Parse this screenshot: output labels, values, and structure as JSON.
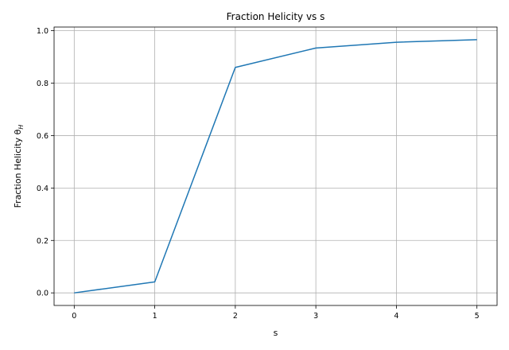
{
  "chart_data": {
    "type": "line",
    "title": "Fraction Helicity vs s",
    "xlabel": "s",
    "ylabel": "Fraction Helicity θ",
    "ylabel_subscript": "H",
    "x": [
      0,
      1,
      2,
      3,
      4,
      5
    ],
    "series": [
      {
        "values": [
          0.0,
          0.042,
          0.86,
          0.934,
          0.956,
          0.966
        ],
        "color": "#1f77b4"
      }
    ],
    "xlim": [
      -0.25,
      5.25
    ],
    "ylim": [
      -0.048,
      1.014
    ],
    "xticks": [
      0,
      1,
      2,
      3,
      4,
      5
    ],
    "xtick_labels": [
      "0",
      "1",
      "2",
      "3",
      "4",
      "5"
    ],
    "yticks": [
      0.0,
      0.2,
      0.4,
      0.6,
      0.8,
      1.0
    ],
    "ytick_labels": [
      "0.0",
      "0.2",
      "0.4",
      "0.6",
      "0.8",
      "1.0"
    ],
    "grid": true,
    "legend": "none"
  }
}
